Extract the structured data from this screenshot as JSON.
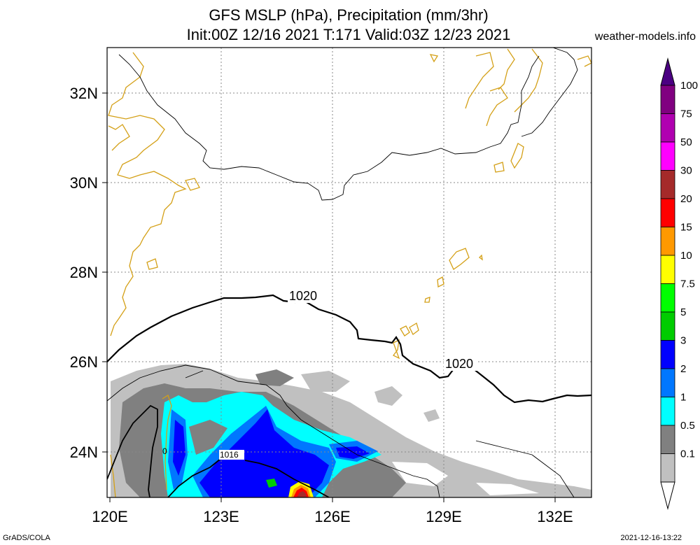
{
  "header": {
    "title_line1": "GFS MSLP (hPa), Precipitation (mm/3hr)",
    "title_line2": "Init:00Z 12/16 2021 T:171 Valid:03Z 12/23 2021",
    "site": "weather-models.info"
  },
  "axes": {
    "lat_labels": [
      "32N",
      "30N",
      "28N",
      "26N",
      "24N"
    ],
    "lon_labels": [
      "120E",
      "123E",
      "126E",
      "129E",
      "132E"
    ]
  },
  "isobars": {
    "labels": [
      "1020",
      "1020",
      "1016",
      "0"
    ]
  },
  "colorbar": {
    "labels": [
      "100",
      "75",
      "50",
      "30",
      "20",
      "15",
      "10",
      "7.5",
      "5",
      "3",
      "2",
      "1",
      "0.5",
      "0.1"
    ],
    "colors": [
      "#800080",
      "#b000b0",
      "#ff00ff",
      "#a52a2a",
      "#ff0000",
      "#ff9900",
      "#ffff00",
      "#00ff00",
      "#00cc00",
      "#0000ff",
      "#0077ff",
      "#00ffff",
      "#808080",
      "#c0c0c0"
    ],
    "top_arrow_color": "#4b0082"
  },
  "footer": {
    "left": "GrADS/COLA",
    "right": "2021-12-16-13:22"
  },
  "colors": {
    "coast": "#d4a017",
    "grid": "#888888"
  }
}
